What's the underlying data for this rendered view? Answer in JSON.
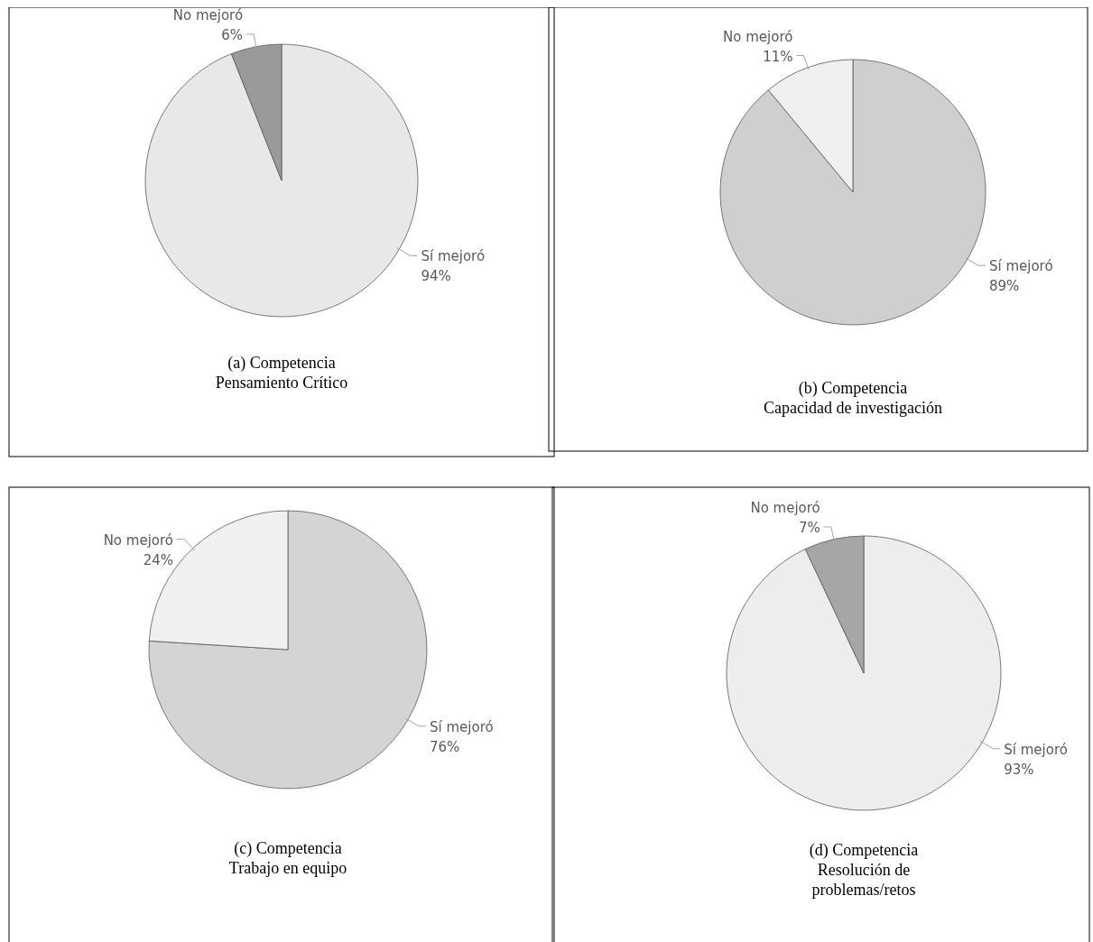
{
  "chart_data": [
    {
      "type": "pie",
      "title": "(a) Competencia\nPensamiento Crítico",
      "categories": [
        "Sí mejoró",
        "No mejoró"
      ],
      "values": [
        94,
        6
      ],
      "value_labels": [
        "94%",
        "6%"
      ],
      "colors": [
        "#e8e8e8",
        "#9a9a9a"
      ]
    },
    {
      "type": "pie",
      "title": "(b) Competencia\nCapacidad de investigación",
      "categories": [
        "Sí mejoró",
        "No mejoró"
      ],
      "values": [
        89,
        11
      ],
      "value_labels": [
        "89%",
        "11%"
      ],
      "colors": [
        "#cfcfcf",
        "#f0f0f0"
      ]
    },
    {
      "type": "pie",
      "title": "(c) Competencia\nTrabajo en equipo",
      "categories": [
        "Sí mejoró",
        "No mejoró"
      ],
      "values": [
        76,
        24
      ],
      "value_labels": [
        "76%",
        "24%"
      ],
      "colors": [
        "#d4d4d4",
        "#f0f0f0"
      ]
    },
    {
      "type": "pie",
      "title": "(d) Competencia\nResolución de\nproblemas/retos",
      "categories": [
        "Sí mejoró",
        "No mejoró"
      ],
      "values": [
        93,
        7
      ],
      "value_labels": [
        "93%",
        "7%"
      ],
      "colors": [
        "#ededed",
        "#a6a6a6"
      ]
    }
  ]
}
